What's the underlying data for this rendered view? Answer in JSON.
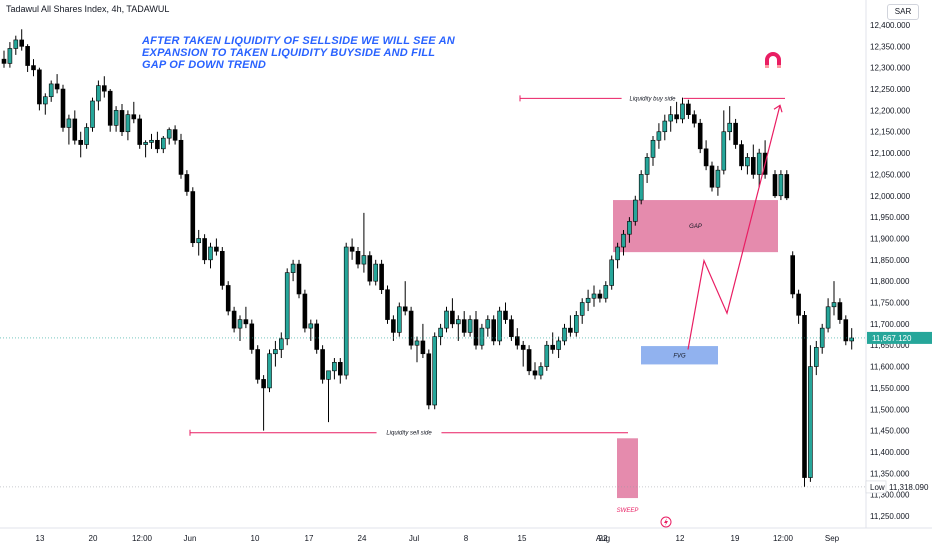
{
  "title": "Tadawul All Shares Index, 4h, TADAWUL",
  "currency": "SAR",
  "annotation_lines": [
    "AFTER TAKEN LIQUIDITY OF SELLSIDE WE WILL SEE AN",
    "EXPANSION TO TAKEN LIQUIDITY BUYSIDE AND FILL",
    "GAP OF DOWN TREND"
  ],
  "chart_data": {
    "type": "candlestick",
    "title": "Tadawul All Shares Index, 4h, TADAWUL",
    "ylim": [
      11220,
      12420
    ],
    "y_ticks": [
      12400,
      12350,
      12300,
      12250,
      12200,
      12150,
      12100,
      12050,
      12000,
      11950,
      11900,
      11850,
      11800,
      11750,
      11700,
      11650,
      11600,
      11550,
      11500,
      11450,
      11400,
      11350,
      11300,
      11250
    ],
    "y_tick_labels": [
      "12,400.000",
      "12,350.000",
      "12,300.000",
      "12,250.000",
      "12,200.000",
      "12,150.000",
      "12,100.000",
      "12,050.000",
      "12,000.000",
      "11,950.000",
      "11,900.000",
      "11,850.000",
      "11,800.000",
      "11,750.000",
      "11,700.000",
      "11,650.000",
      "11,600.000",
      "11,550.000",
      "11,500.000",
      "11,450.000",
      "11,400.000",
      "11,350.000",
      "11,300.000",
      "11,250.000"
    ],
    "x_tick_labels": [
      "13",
      "20",
      "12:00",
      "Jun",
      "10",
      "17",
      "24",
      "Jul",
      "8",
      "15",
      "22",
      "Aug",
      "12",
      "19",
      "12:00",
      "Sep"
    ],
    "last_price": 11667.12,
    "last_price_label": "11,667.120",
    "low_value": 11318.09,
    "low_value_label": "11,318.090",
    "low_tag": "Low",
    "bull_color": "#26a69a",
    "bear_color": "#000000",
    "annotations": [
      {
        "type": "level",
        "label": "Liquidity buy side",
        "price": 12228,
        "color": "#e91e63"
      },
      {
        "type": "level",
        "label": "Liquidity sell side",
        "price": 11445,
        "color": "#e91e63"
      },
      {
        "type": "zone",
        "label": "GAP",
        "price_top": 11990,
        "price_bottom": 11868,
        "color": "#e0779f"
      },
      {
        "type": "zone",
        "label": "FVG",
        "price_top": 11648,
        "price_bottom": 11605,
        "color": "#7ea4ec"
      },
      {
        "type": "zone",
        "label": "SWEEP",
        "price_top": 11432,
        "price_bottom": 11292,
        "color": "#e0779f"
      }
    ],
    "projection": [
      11640,
      11848,
      11725,
      12212
    ],
    "candles": [
      [
        12320,
        12340,
        12300,
        12310
      ],
      [
        12310,
        12360,
        12300,
        12345
      ],
      [
        12345,
        12375,
        12330,
        12365
      ],
      [
        12365,
        12390,
        12340,
        12350
      ],
      [
        12350,
        12355,
        12290,
        12305
      ],
      [
        12305,
        12320,
        12280,
        12295
      ],
      [
        12295,
        12300,
        12200,
        12215
      ],
      [
        12215,
        12240,
        12190,
        12232
      ],
      [
        12232,
        12270,
        12220,
        12262
      ],
      [
        12262,
        12285,
        12240,
        12250
      ],
      [
        12250,
        12260,
        12150,
        12160
      ],
      [
        12160,
        12190,
        12120,
        12180
      ],
      [
        12180,
        12200,
        12120,
        12130
      ],
      [
        12130,
        12150,
        12090,
        12120
      ],
      [
        12120,
        12170,
        12110,
        12160
      ],
      [
        12160,
        12230,
        12150,
        12222
      ],
      [
        12222,
        12270,
        12200,
        12258
      ],
      [
        12258,
        12280,
        12230,
        12245
      ],
      [
        12245,
        12250,
        12150,
        12165
      ],
      [
        12165,
        12210,
        12150,
        12200
      ],
      [
        12200,
        12215,
        12140,
        12150
      ],
      [
        12150,
        12200,
        12130,
        12190
      ],
      [
        12190,
        12220,
        12170,
        12180
      ],
      [
        12180,
        12190,
        12110,
        12120
      ],
      [
        12120,
        12130,
        12090,
        12125
      ],
      [
        12125,
        12145,
        12110,
        12130
      ],
      [
        12130,
        12150,
        12100,
        12110
      ],
      [
        12110,
        12140,
        12100,
        12135
      ],
      [
        12135,
        12160,
        12120,
        12155
      ],
      [
        12155,
        12165,
        12120,
        12130
      ],
      [
        12130,
        12145,
        12040,
        12050
      ],
      [
        12050,
        12060,
        12000,
        12010
      ],
      [
        12010,
        12020,
        11880,
        11890
      ],
      [
        11890,
        11920,
        11860,
        11900
      ],
      [
        11900,
        11910,
        11840,
        11850
      ],
      [
        11850,
        11890,
        11830,
        11880
      ],
      [
        11880,
        11900,
        11860,
        11870
      ],
      [
        11870,
        11880,
        11780,
        11790
      ],
      [
        11790,
        11800,
        11720,
        11730
      ],
      [
        11730,
        11740,
        11680,
        11690
      ],
      [
        11690,
        11720,
        11660,
        11710
      ],
      [
        11710,
        11740,
        11690,
        11700
      ],
      [
        11700,
        11710,
        11630,
        11640
      ],
      [
        11640,
        11650,
        11560,
        11570
      ],
      [
        11570,
        11580,
        11450,
        11550
      ],
      [
        11550,
        11640,
        11540,
        11630
      ],
      [
        11630,
        11660,
        11600,
        11640
      ],
      [
        11640,
        11680,
        11620,
        11665
      ],
      [
        11665,
        11830,
        11650,
        11820
      ],
      [
        11820,
        11850,
        11800,
        11840
      ],
      [
        11840,
        11850,
        11760,
        11770
      ],
      [
        11770,
        11780,
        11680,
        11690
      ],
      [
        11690,
        11710,
        11660,
        11700
      ],
      [
        11700,
        11710,
        11630,
        11640
      ],
      [
        11640,
        11650,
        11560,
        11570
      ],
      [
        11570,
        11590,
        11470,
        11590
      ],
      [
        11590,
        11620,
        11570,
        11610
      ],
      [
        11610,
        11620,
        11560,
        11580
      ],
      [
        11580,
        11890,
        11570,
        11880
      ],
      [
        11880,
        11900,
        11850,
        11870
      ],
      [
        11870,
        11880,
        11830,
        11840
      ],
      [
        11840,
        11960,
        11820,
        11860
      ],
      [
        11860,
        11870,
        11790,
        11800
      ],
      [
        11800,
        11850,
        11790,
        11840
      ],
      [
        11840,
        11850,
        11770,
        11780
      ],
      [
        11780,
        11790,
        11700,
        11710
      ],
      [
        11710,
        11720,
        11660,
        11680
      ],
      [
        11680,
        11750,
        11670,
        11740
      ],
      [
        11740,
        11800,
        11720,
        11730
      ],
      [
        11730,
        11740,
        11640,
        11650
      ],
      [
        11650,
        11670,
        11610,
        11660
      ],
      [
        11660,
        11700,
        11620,
        11630
      ],
      [
        11630,
        11640,
        11500,
        11510
      ],
      [
        11510,
        11680,
        11500,
        11670
      ],
      [
        11670,
        11700,
        11650,
        11690
      ],
      [
        11690,
        11740,
        11680,
        11730
      ],
      [
        11730,
        11760,
        11690,
        11700
      ],
      [
        11700,
        11720,
        11660,
        11710
      ],
      [
        11710,
        11730,
        11670,
        11680
      ],
      [
        11680,
        11720,
        11670,
        11710
      ],
      [
        11710,
        11730,
        11640,
        11650
      ],
      [
        11650,
        11700,
        11640,
        11690
      ],
      [
        11690,
        11720,
        11670,
        11710
      ],
      [
        11710,
        11720,
        11650,
        11660
      ],
      [
        11660,
        11740,
        11650,
        11730
      ],
      [
        11730,
        11750,
        11700,
        11710
      ],
      [
        11710,
        11720,
        11660,
        11670
      ],
      [
        11670,
        11690,
        11640,
        11650
      ],
      [
        11650,
        11660,
        11600,
        11640
      ],
      [
        11640,
        11650,
        11580,
        11590
      ],
      [
        11590,
        11610,
        11570,
        11580
      ],
      [
        11580,
        11610,
        11570,
        11600
      ],
      [
        11600,
        11660,
        11590,
        11650
      ],
      [
        11650,
        11680,
        11630,
        11640
      ],
      [
        11640,
        11670,
        11620,
        11660
      ],
      [
        11660,
        11700,
        11650,
        11690
      ],
      [
        11690,
        11720,
        11670,
        11680
      ],
      [
        11680,
        11730,
        11670,
        11720
      ],
      [
        11720,
        11760,
        11700,
        11750
      ],
      [
        11750,
        11780,
        11730,
        11760
      ],
      [
        11760,
        11790,
        11740,
        11770
      ],
      [
        11770,
        11780,
        11750,
        11760
      ],
      [
        11760,
        11800,
        11750,
        11790
      ],
      [
        11790,
        11860,
        11780,
        11850
      ],
      [
        11850,
        11890,
        11830,
        11880
      ],
      [
        11880,
        11920,
        11860,
        11910
      ],
      [
        11910,
        11950,
        11890,
        11940
      ],
      [
        11940,
        12000,
        11930,
        11990
      ],
      [
        11990,
        12060,
        11980,
        12050
      ],
      [
        12050,
        12100,
        12030,
        12090
      ],
      [
        12090,
        12140,
        12070,
        12130
      ],
      [
        12130,
        12170,
        12110,
        12150
      ],
      [
        12150,
        12190,
        12130,
        12175
      ],
      [
        12175,
        12210,
        12150,
        12190
      ],
      [
        12190,
        12220,
        12170,
        12180
      ],
      [
        12180,
        12230,
        12170,
        12215
      ],
      [
        12215,
        12225,
        12180,
        12190
      ],
      [
        12190,
        12200,
        12160,
        12170
      ],
      [
        12170,
        12180,
        12100,
        12110
      ],
      [
        12110,
        12130,
        12060,
        12070
      ],
      [
        12070,
        12080,
        12010,
        12020
      ],
      [
        12020,
        12070,
        12000,
        12060
      ],
      [
        12060,
        12200,
        12050,
        12150
      ],
      [
        12150,
        12210,
        12130,
        12170
      ],
      [
        12170,
        12180,
        12110,
        12120
      ],
      [
        12120,
        12130,
        12060,
        12070
      ],
      [
        12070,
        12100,
        12050,
        12090
      ],
      [
        12090,
        12120,
        12040,
        12050
      ],
      [
        12050,
        12110,
        12020,
        12100
      ],
      [
        12100,
        12130,
        12040,
        12050
      ],
      [
        12050,
        12060,
        11995,
        12000
      ],
      [
        12000,
        12060,
        11990,
        12050
      ],
      [
        12050,
        12060,
        11990,
        11995
      ],
      [
        11860,
        11870,
        11760,
        11770
      ],
      [
        11770,
        11780,
        11700,
        11720
      ],
      [
        11720,
        11730,
        11318,
        11340
      ],
      [
        11340,
        11650,
        11330,
        11600
      ],
      [
        11600,
        11660,
        11580,
        11645
      ],
      [
        11645,
        11700,
        11630,
        11690
      ],
      [
        11690,
        11760,
        11680,
        11740
      ],
      [
        11740,
        11800,
        11720,
        11750
      ],
      [
        11750,
        11760,
        11700,
        11710
      ],
      [
        11710,
        11720,
        11650,
        11660
      ],
      [
        11660,
        11690,
        11640,
        11667
      ]
    ]
  }
}
